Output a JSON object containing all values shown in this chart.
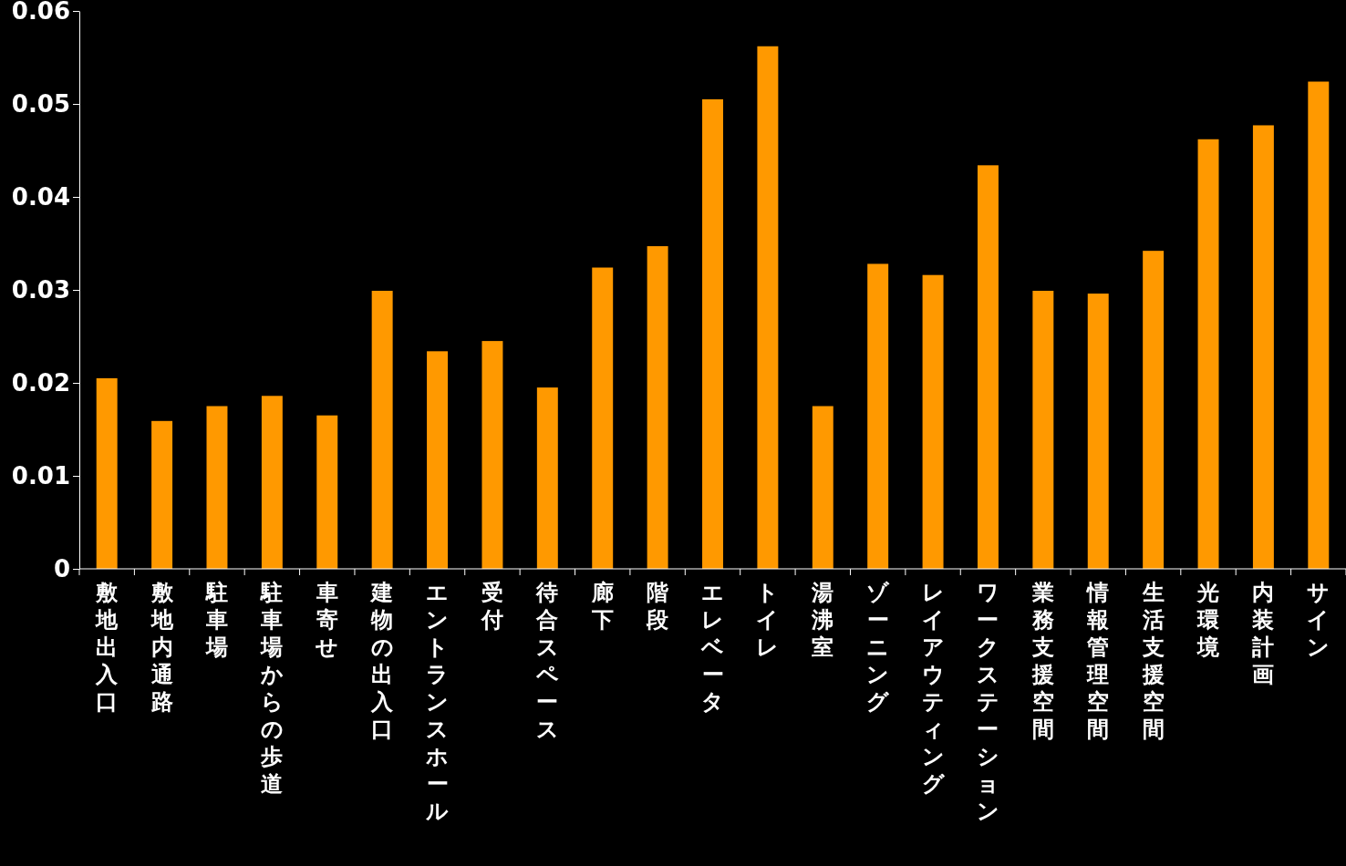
{
  "chart_data": {
    "type": "bar",
    "categories": [
      "敷地出入口",
      "敷地内通路",
      "駐車場",
      "駐車場からの歩道",
      "車寄せ",
      "建物の出入口",
      "エントランスホール",
      "受付",
      "待合スペース",
      "廊下",
      "階段",
      "エレベータ",
      "トイレ",
      "湯沸室",
      "ゾーニング",
      "レイアウティング",
      "ワークステーション",
      "業務支援空間",
      "情報管理空間",
      "生活支援空間",
      "光環境",
      "内装計画",
      "サイン"
    ],
    "values": [
      0.0205,
      0.0159,
      0.0175,
      0.0186,
      0.0165,
      0.0299,
      0.0234,
      0.0245,
      0.0195,
      0.0324,
      0.0347,
      0.0505,
      0.0562,
      0.0175,
      0.0328,
      0.0316,
      0.0434,
      0.0299,
      0.0296,
      0.0342,
      0.0462,
      0.0477,
      0.0524
    ],
    "color": "#ff9900",
    "ylim": [
      0,
      0.06
    ],
    "yticks": [
      0,
      0.01,
      0.02,
      0.03,
      0.04,
      0.05,
      0.06
    ],
    "grid": false
  }
}
